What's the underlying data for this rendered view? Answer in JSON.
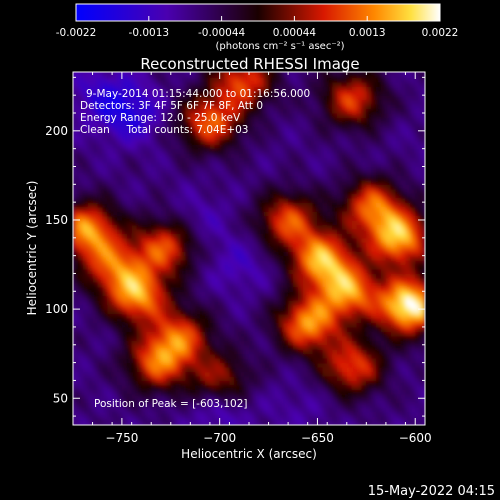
{
  "chart_data": {
    "type": "heatmap",
    "title": "Reconstructed RHESSI Image",
    "xlabel": "Heliocentric X (arcsec)",
    "ylabel": "Heliocentric Y (arcsec)",
    "xlim": [
      -775,
      -595
    ],
    "ylim": [
      35,
      233
    ],
    "x_ticks": [
      -750,
      -700,
      -650,
      -600
    ],
    "y_ticks": [
      50,
      100,
      150,
      200
    ],
    "colorbar": {
      "ticks": [
        "-0.0022",
        "-0.0013",
        "-0.00044",
        "0.00044",
        "0.0013",
        "0.0022"
      ],
      "unit_label": "(photons cm⁻² s⁻¹ asec⁻²)",
      "range": [
        -0.0022,
        0.0022
      ]
    },
    "annotations": [
      "9-May-2014 01:15:44.000 to 01:16:56.000",
      "Detectors: 3F 4F 5F 6F 7F 8F, Att 0",
      "Energy Range: 12.0 - 25.0 keV",
      "Clean     Total counts: 7.04E+03"
    ],
    "peak_text": "Position of Peak = [-603,102]",
    "peak": [
      -603,
      102
    ],
    "sources": [
      {
        "x": -603,
        "y": 102,
        "value": 0.0022
      },
      {
        "x": -608,
        "y": 140,
        "value": 0.0016
      },
      {
        "x": -648,
        "y": 128,
        "value": 0.0015
      },
      {
        "x": -655,
        "y": 92,
        "value": 0.0014
      },
      {
        "x": -634,
        "y": 110,
        "value": 0.0013
      },
      {
        "x": -622,
        "y": 158,
        "value": 0.0011
      },
      {
        "x": -632,
        "y": 68,
        "value": 0.001
      },
      {
        "x": -665,
        "y": 150,
        "value": 0.001
      },
      {
        "x": -768,
        "y": 145,
        "value": 0.0014
      },
      {
        "x": -742,
        "y": 108,
        "value": 0.0014
      },
      {
        "x": -728,
        "y": 135,
        "value": 0.001
      },
      {
        "x": -755,
        "y": 125,
        "value": 0.0008
      },
      {
        "x": -720,
        "y": 85,
        "value": 0.0009
      },
      {
        "x": -732,
        "y": 70,
        "value": 0.001
      },
      {
        "x": -705,
        "y": 205,
        "value": 0.0011
      },
      {
        "x": -688,
        "y": 228,
        "value": 0.001
      },
      {
        "x": -632,
        "y": 218,
        "value": 0.0009
      },
      {
        "x": -700,
        "y": 60,
        "value": 0.0006
      },
      {
        "x": -745,
        "y": 210,
        "value": -0.0016
      },
      {
        "x": -760,
        "y": 220,
        "value": -0.0014
      },
      {
        "x": -700,
        "y": 45,
        "value": -0.0014
      },
      {
        "x": -690,
        "y": 125,
        "value": -0.0012
      },
      {
        "x": -710,
        "y": 150,
        "value": -0.0011
      },
      {
        "x": -660,
        "y": 45,
        "value": -0.001
      },
      {
        "x": -600,
        "y": 190,
        "value": -0.0008
      }
    ]
  },
  "footer": {
    "date": "15-May-2022 04:15"
  }
}
